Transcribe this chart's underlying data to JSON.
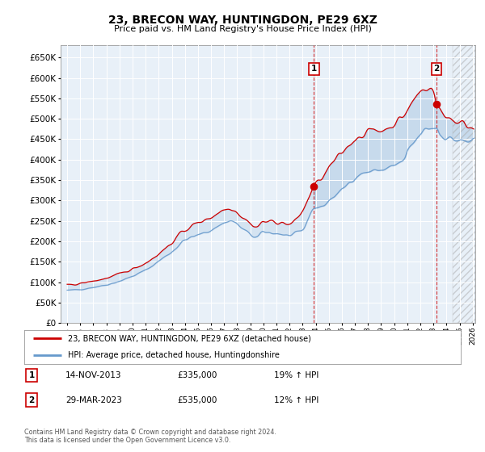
{
  "title": "23, BRECON WAY, HUNTINGDON, PE29 6XZ",
  "subtitle": "Price paid vs. HM Land Registry's House Price Index (HPI)",
  "legend_line1": "23, BRECON WAY, HUNTINGDON, PE29 6XZ (detached house)",
  "legend_line2": "HPI: Average price, detached house, Huntingdonshire",
  "annotation1_label": "1",
  "annotation1_date": "14-NOV-2013",
  "annotation1_price": "£335,000",
  "annotation1_hpi": "19% ↑ HPI",
  "annotation2_label": "2",
  "annotation2_date": "29-MAR-2023",
  "annotation2_price": "£535,000",
  "annotation2_hpi": "12% ↑ HPI",
  "footer": "Contains HM Land Registry data © Crown copyright and database right 2024.\nThis data is licensed under the Open Government Licence v3.0.",
  "line1_color": "#cc0000",
  "line2_color": "#6699cc",
  "fill_color": "#d0e4f7",
  "background_color": "#e8f0f8",
  "ylim": [
    0,
    680000
  ],
  "yticks": [
    0,
    50000,
    100000,
    150000,
    200000,
    250000,
    300000,
    350000,
    400000,
    450000,
    500000,
    550000,
    600000,
    650000
  ],
  "marker1_year": 2013.87,
  "marker1_y": 335000,
  "marker2_year": 2023.24,
  "marker2_y": 535000,
  "vline1_x": 2013.87,
  "vline2_x": 2023.24,
  "hatch_start": 2024.5,
  "xmin": 1994.5,
  "xmax": 2026.2
}
